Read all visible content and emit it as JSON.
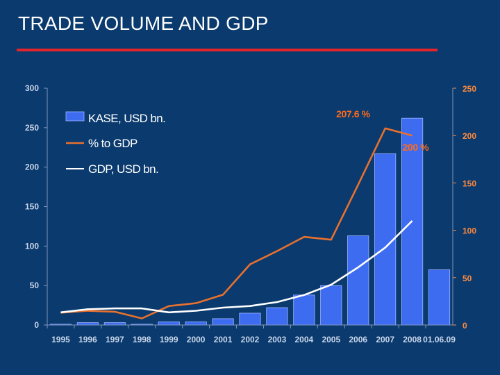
{
  "slide": {
    "title": "TRADE VOLUME AND GDP"
  },
  "colors": {
    "background": "#0a3a6e",
    "accent_rule": "#e3242b",
    "bar": "#3d6cf0",
    "line_pct": "#e8712e",
    "line_gdp": "#ffffff"
  },
  "chart_data": {
    "type": "bar",
    "title": "",
    "xlabel": "",
    "ylabel": "",
    "categories": [
      "1995",
      "1996",
      "1997",
      "1998",
      "1999",
      "2000",
      "2001",
      "2002",
      "2003",
      "2004",
      "2005",
      "2006",
      "2007",
      "2008",
      "01.06.09"
    ],
    "ylim": [
      0,
      300
    ],
    "y2lim": [
      0,
      250
    ],
    "yticks": [
      "0",
      "50",
      "100",
      "150",
      "200",
      "250",
      "300"
    ],
    "y2ticks": [
      "0",
      "50",
      "100",
      "150",
      "200",
      "250"
    ],
    "legend": [
      "KASE, USD bn.",
      "% to GDP",
      "GDP, USD bn."
    ],
    "legend_position": "top-left",
    "series": [
      {
        "name": "KASE, USD bn.",
        "kind": "bar",
        "axis": "left",
        "values": [
          1,
          3,
          3,
          1,
          4,
          4,
          8,
          15,
          22,
          38,
          50,
          113,
          217,
          262,
          70
        ]
      },
      {
        "name": "% to GDP",
        "kind": "line",
        "axis": "right",
        "values": [
          13,
          15,
          14,
          7,
          20,
          23,
          32,
          64,
          78,
          93,
          90,
          148,
          207.6,
          200,
          null
        ]
      },
      {
        "name": "GDP, USD bn.",
        "kind": "line",
        "axis": "left",
        "values": [
          16,
          20,
          21,
          21,
          16,
          18,
          22,
          24,
          29,
          38,
          51,
          73,
          98,
          132,
          null
        ]
      }
    ],
    "annotations": [
      {
        "text": "207.6 %",
        "series": "% to GDP",
        "category": "2007"
      },
      {
        "text": "200 %",
        "series": "% to GDP",
        "category": "2008"
      }
    ]
  }
}
